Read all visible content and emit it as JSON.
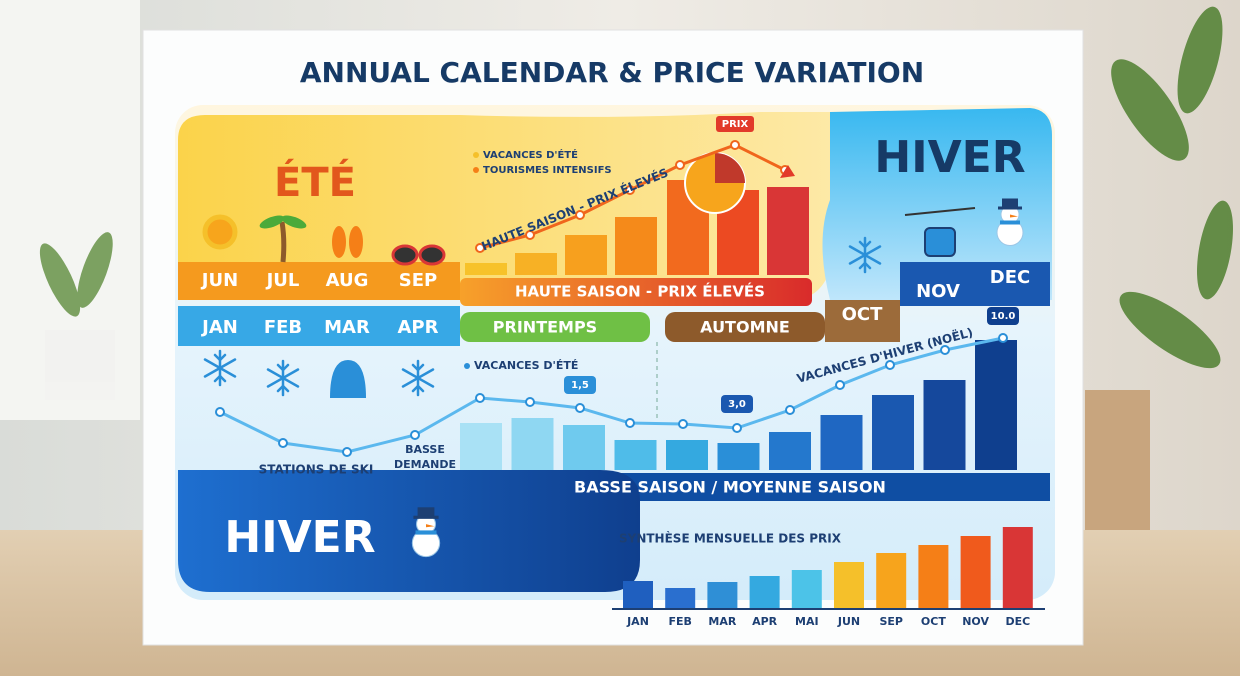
{
  "title": "ANNUAL CALENDAR & PRICE VARIATION",
  "summer": {
    "label": "ÉTÉ",
    "months": [
      "JUN",
      "JUL",
      "AUG",
      "SEP"
    ],
    "legend": [
      "VACANCES D'ÉTÉ",
      "TOURISMES INTENSIFS"
    ],
    "curve_label": "HAUTE SAISON - PRIX ÉLEVÉS",
    "marker": "PRIX",
    "band_label": "HAUTE SAISON - PRIX ÉLEVÉS",
    "bars": [
      12,
      22,
      40,
      58,
      95,
      85,
      88
    ],
    "curve": [
      27,
      40,
      60,
      85,
      110,
      130,
      105
    ]
  },
  "winter_top": {
    "label": "HIVER",
    "months": [
      "NOV",
      "DEC"
    ]
  },
  "middle": {
    "months": [
      "JAN",
      "FEB",
      "MAR",
      "APR"
    ],
    "spring": "PRINTEMPS",
    "autumn": "AUTOMNE",
    "autumn_month": "OCT"
  },
  "low_season": {
    "legend": "VACANCES D'ÉTÉ",
    "curve_label": "VACANCES D'HIVER (NOËL)",
    "annotations": [
      "1,5",
      "3,0",
      "10.0"
    ],
    "ski": "STATIONS DE SKI",
    "demand": [
      "BASSE",
      "DEMANDE"
    ],
    "band_label": "BASSE SAISON / MOYENNE SAISON",
    "curve": [
      58,
      27,
      18,
      35,
      72,
      68,
      62,
      47,
      46,
      42,
      60,
      85,
      105,
      120,
      132
    ],
    "bars": [
      47,
      52,
      45,
      30,
      30,
      27,
      38,
      55,
      75,
      90,
      130
    ]
  },
  "winter_bottom": {
    "label": "HIVER"
  },
  "chart_data": {
    "type": "bar",
    "title": "SYNTHÈSE MENSUELLE DES PRIX",
    "categories": [
      "JAN",
      "FEB",
      "MAR",
      "APR",
      "MAI",
      "JUN",
      "SEP",
      "OCT",
      "NOV",
      "DEC"
    ],
    "values": [
      27,
      20,
      26,
      32,
      38,
      46,
      55,
      63,
      72,
      81
    ],
    "colors": [
      "#1f5fbf",
      "#2a6fcf",
      "#2f8fd6",
      "#34a9e0",
      "#4cc3e8",
      "#f5c02a",
      "#f7a41c",
      "#f57f17",
      "#f05a1c",
      "#d93636"
    ]
  }
}
